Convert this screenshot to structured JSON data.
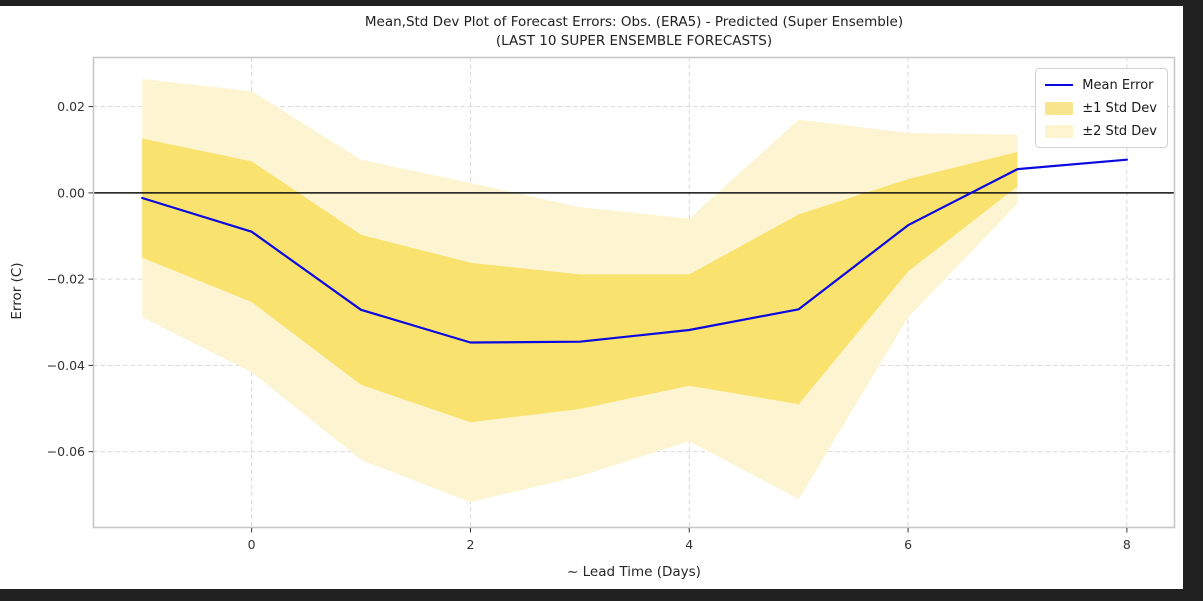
{
  "window": {
    "frame_color": "#212121",
    "background": "#ffffff"
  },
  "chart_data": {
    "type": "line",
    "title": "Mean,Std Dev Plot of Forecast Errors: Obs. (ERA5) - Predicted (Super Ensemble)",
    "subtitle": "(LAST 10 SUPER ENSEMBLE FORECASTS)",
    "xlabel": "~ Lead Time (Days)",
    "ylabel": "Error (C)",
    "x": [
      -1,
      0,
      1,
      2,
      3,
      4,
      5,
      6,
      7,
      8
    ],
    "series": [
      {
        "name": "Mean Error",
        "kind": "line",
        "color": "#0a0ae0",
        "values": [
          -0.0012,
          -0.009,
          -0.0271,
          -0.0347,
          -0.0345,
          -0.0318,
          -0.027,
          -0.0075,
          0.0055,
          0.0077
        ]
      },
      {
        "name": "±1 Std Dev",
        "kind": "band",
        "color": "#fae26e",
        "std_multiplier": 1
      },
      {
        "name": "±2 Std Dev",
        "kind": "band",
        "color": "#fdf5d2",
        "std_multiplier": 2
      }
    ],
    "std": [
      0.0138,
      0.0163,
      0.0174,
      0.0185,
      0.0156,
      0.0129,
      0.022,
      0.0107,
      0.004,
      null
    ],
    "xlim": [
      -1.45,
      8.44
    ],
    "ylim": [
      -0.0777,
      0.0315
    ],
    "x_ticks": {
      "values": [
        0,
        2,
        4,
        6,
        8
      ],
      "labels": [
        "0",
        "2",
        "4",
        "6",
        "8"
      ]
    },
    "y_ticks": {
      "values": [
        0.02,
        0.0,
        -0.02,
        -0.04,
        -0.06
      ],
      "labels": [
        "0.02",
        "0.00",
        "−0.02",
        "−0.04",
        "−0.06"
      ]
    },
    "zero_line": true,
    "grid": {
      "on": true,
      "style": "dashed",
      "color": "#d9d9d9"
    },
    "legend_position": "upper right"
  },
  "legend": {
    "items": [
      {
        "label": "Mean Error",
        "swatch": "line",
        "color": "#0a0ae0"
      },
      {
        "label": "±1 Std Dev",
        "swatch": "patch",
        "color": "#f8e58e"
      },
      {
        "label": "±2 Std Dev",
        "swatch": "patch",
        "color": "#fdf4d0"
      }
    ]
  }
}
